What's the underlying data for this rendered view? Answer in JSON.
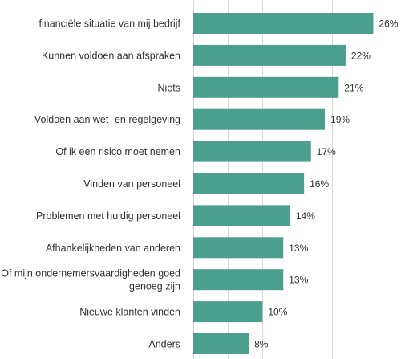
{
  "chart_data": {
    "type": "bar",
    "orientation": "horizontal",
    "categories": [
      "financiële situatie van mij bedrijf",
      "Kunnen voldoen aan afspraken",
      "Niets",
      "Voldoen aan wet- en regelgeving",
      "Of ik een risico moet nemen",
      "Vinden van personeel",
      "Problemen met huidig personeel",
      "Afhankelijkheden van anderen",
      "Of mijn ondernemersvaardigheden goed genoeg zijn",
      "Nieuwe klanten vinden",
      "Anders"
    ],
    "category_lines": [
      [
        "financiële situatie van mij bedrijf"
      ],
      [
        "Kunnen voldoen aan afspraken"
      ],
      [
        "Niets"
      ],
      [
        "Voldoen aan wet- en regelgeving"
      ],
      [
        "Of ik een risico moet nemen"
      ],
      [
        "Vinden van personeel"
      ],
      [
        "Problemen met huidig personeel"
      ],
      [
        "Afhankelijkheden van anderen"
      ],
      [
        "Of mijn ondernemersvaardigheden goed",
        "genoeg zijn"
      ],
      [
        "Nieuwe klanten vinden"
      ],
      [
        "Anders"
      ]
    ],
    "values": [
      26,
      22,
      21,
      19,
      17,
      16,
      14,
      13,
      13,
      10,
      8
    ],
    "value_labels": [
      "26%",
      "22%",
      "21%",
      "19%",
      "17%",
      "16%",
      "14%",
      "13%",
      "13%",
      "10%",
      "8%"
    ],
    "unit": "%",
    "xlim": [
      0,
      30
    ],
    "grid": true,
    "bar_color": "#4aa08d",
    "title": "",
    "xlabel": "",
    "ylabel": ""
  }
}
